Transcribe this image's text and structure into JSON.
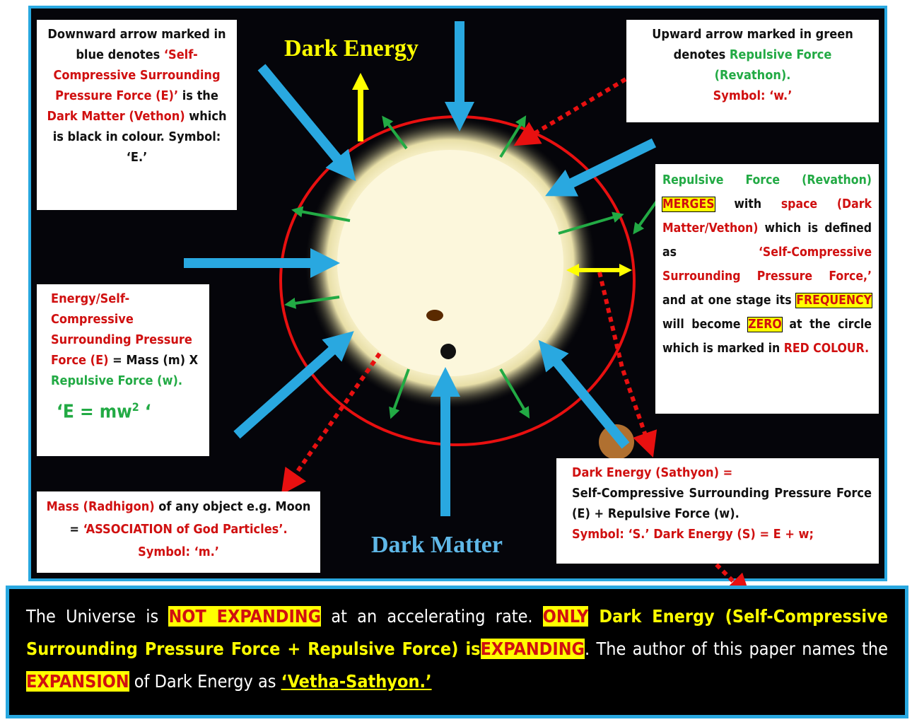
{
  "labels": {
    "dark_energy": "Dark Energy",
    "dark_matter": "Dark Matter"
  },
  "boxes": {
    "top_left": [
      "Downward arrow marked in blue denotes ",
      "‘Self-Compressive Surrounding Pressure Force (E)’",
      " is the ",
      "Dark Matter (Vethon)",
      " which is black in colour. Symbol: ‘E.’"
    ],
    "top_right": [
      "Upward arrow marked in green denotes ",
      "Repulsive Force (Revathon).",
      "Symbol: ‘w.’"
    ],
    "right": [
      "Repulsive Force (Revathon)",
      "MERGES",
      " with ",
      "space (Dark Matter/Vethon)",
      " which is defined as ",
      "‘Self-Compressive Surrounding Pressure Force,’",
      " and at one stage its ",
      "FREQUENCY",
      " will become ",
      "ZERO",
      " at the circle which is marked in ",
      "RED COLOUR."
    ],
    "left_middle": [
      "Energy/Self-Compressive Surrounding Pressure Force (E)",
      " = Mass (m) X ",
      "Repulsive Force (w).",
      "‘E = mw",
      "2",
      " ‘"
    ],
    "bottom_left": [
      "Mass (Radhigon)",
      " of any object e.g. Moon = ",
      "‘ASSOCIATION of God Particles’.  Symbol: ‘m.’"
    ],
    "bottom_right": [
      "Dark Energy (Sathyon) =",
      "Self-Compressive Surrounding Pressure Force (E) + Repulsive Force (w).",
      "Symbol: ‘S.’ Dark Energy (S) = E + w;"
    ]
  },
  "banner": [
    "The Universe is ",
    "NOT EXPANDING",
    " at an accelerating rate. ",
    "ONLY",
    " Dark Energy (Self-Compressive Surrounding Pressure Force + Repulsive Force) is",
    "EXPANDING",
    ". The author of this paper names the ",
    "EXPANSION",
    " of Dark Energy as ",
    "‘Vetha-Sathyon.’"
  ]
}
